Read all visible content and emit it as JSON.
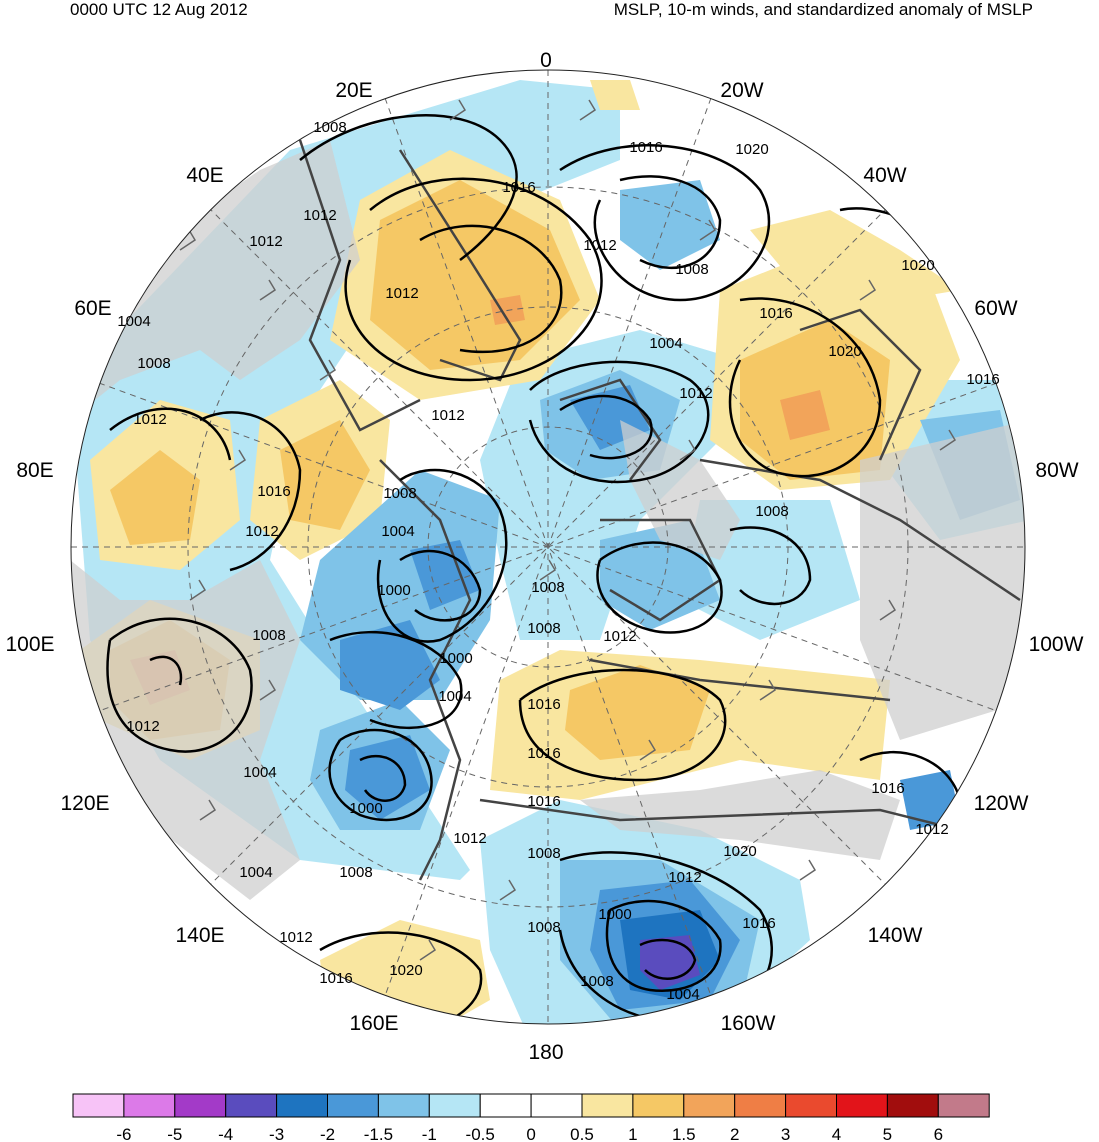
{
  "header": {
    "time": "0000 UTC 12 Aug 2012",
    "title": "MSLP, 10-m winds, and standardized anomaly of MSLP"
  },
  "longitude_labels": [
    "0",
    "20W",
    "40W",
    "60W",
    "80W",
    "100W",
    "120W",
    "140W",
    "160W",
    "180",
    "160E",
    "140E",
    "120E",
    "100E",
    "80E",
    "60E",
    "40E",
    "20E"
  ],
  "contour_labels": [
    "1008",
    "1012",
    "1016",
    "1016",
    "1012",
    "1020",
    "1020",
    "1008",
    "1004",
    "1012",
    "1016",
    "1020",
    "1016",
    "1012",
    "1008",
    "1004",
    "1008",
    "1012",
    "1012",
    "1016",
    "1012",
    "1008",
    "1004",
    "1000",
    "1008",
    "1008",
    "1012",
    "1000",
    "1004",
    "1008",
    "1012",
    "1016",
    "1016",
    "1016",
    "1004",
    "1000",
    "1012",
    "1008",
    "1008",
    "1012",
    "1020",
    "1012",
    "1000",
    "1016",
    "1008",
    "1004",
    "1004",
    "1008",
    "1012",
    "1016",
    "1020",
    "1016",
    "1012"
  ],
  "colorbar": {
    "levels": [
      "-6",
      "-5",
      "-4",
      "-3",
      "-2",
      "-1.5",
      "-1",
      "-0.5",
      "0",
      "0.5",
      "1",
      "1.5",
      "2",
      "3",
      "4",
      "5",
      "6"
    ],
    "colors": [
      "#f7c3f7",
      "#dc7ae8",
      "#a33ac8",
      "#5a4cbe",
      "#1e74c0",
      "#4a98d8",
      "#7fc3e8",
      "#b5e6f5",
      "#ffffff",
      "#ffffff",
      "#f9e6a0",
      "#f5c865",
      "#f2a45a",
      "#ef7e45",
      "#ea4a2e",
      "#e2141a",
      "#a10d0d",
      "#c27a8a"
    ]
  },
  "colors": {
    "land": "#cfcfcf",
    "coast": "#444444",
    "neg_light": "#b5e6f5",
    "neg_mid": "#7fc3e8",
    "neg_dark": "#4a98d8",
    "neg_deeper": "#1e74c0",
    "neg_deepest": "#5a4cbe",
    "pos_light": "#f9e6a0",
    "pos_mid": "#f5c865",
    "pos_dark": "#f2a45a",
    "pos_deeper": "#ef7e45"
  }
}
